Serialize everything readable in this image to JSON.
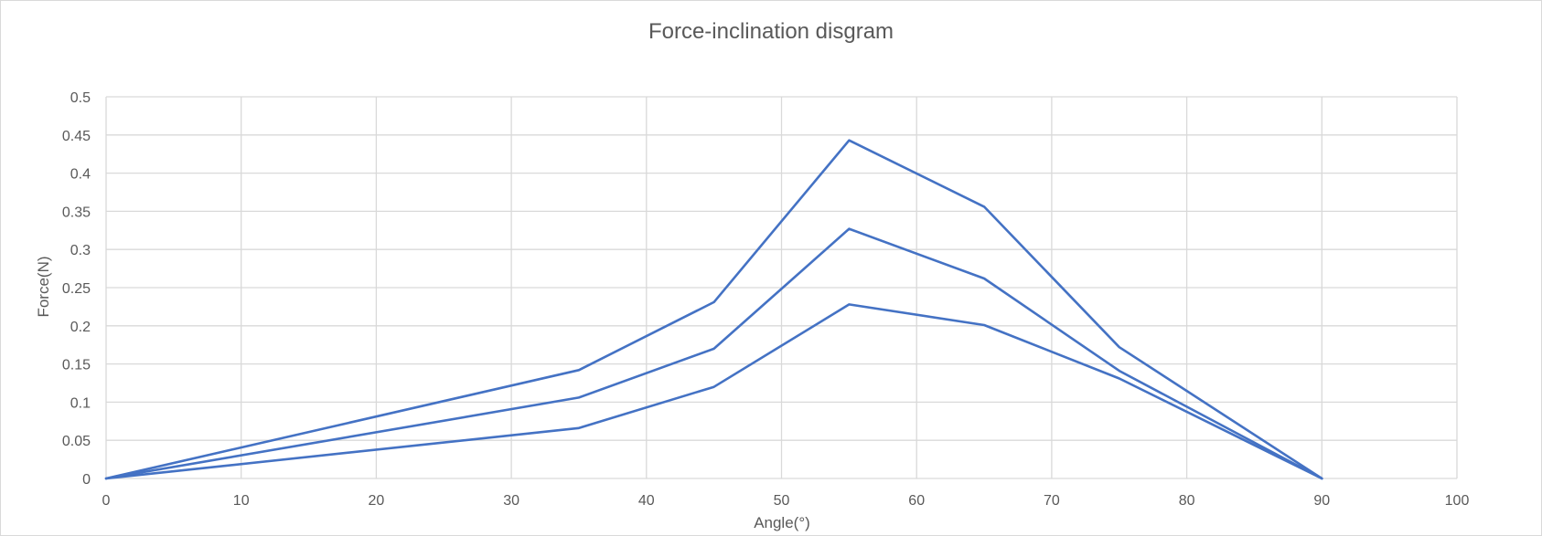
{
  "chart_data": {
    "type": "line",
    "title": "Force-inclination disgram",
    "xlabel": "Angle(°)",
    "ylabel": "Force(N)",
    "xlim": [
      0,
      100
    ],
    "ylim": [
      0,
      0.5
    ],
    "x_ticks": [
      "0",
      "10",
      "20",
      "30",
      "40",
      "50",
      "60",
      "70",
      "80",
      "90",
      "100"
    ],
    "y_ticks": [
      "0",
      "0.05",
      "0.1",
      "0.15",
      "0.2",
      "0.25",
      "0.3",
      "0.35",
      "0.4",
      "0.45",
      "0.5"
    ],
    "grid": true,
    "legend": "none",
    "x": [
      0,
      35,
      45,
      55,
      65,
      75,
      90
    ],
    "series": [
      {
        "values": [
          0,
          0.142,
          0.231,
          0.443,
          0.356,
          0.172,
          0
        ],
        "color": "#4472C4"
      },
      {
        "values": [
          0,
          0.106,
          0.17,
          0.327,
          0.262,
          0.141,
          0
        ],
        "color": "#4472C4"
      },
      {
        "values": [
          0,
          0.066,
          0.12,
          0.228,
          0.201,
          0.131,
          0
        ],
        "color": "#4472C4"
      }
    ]
  }
}
